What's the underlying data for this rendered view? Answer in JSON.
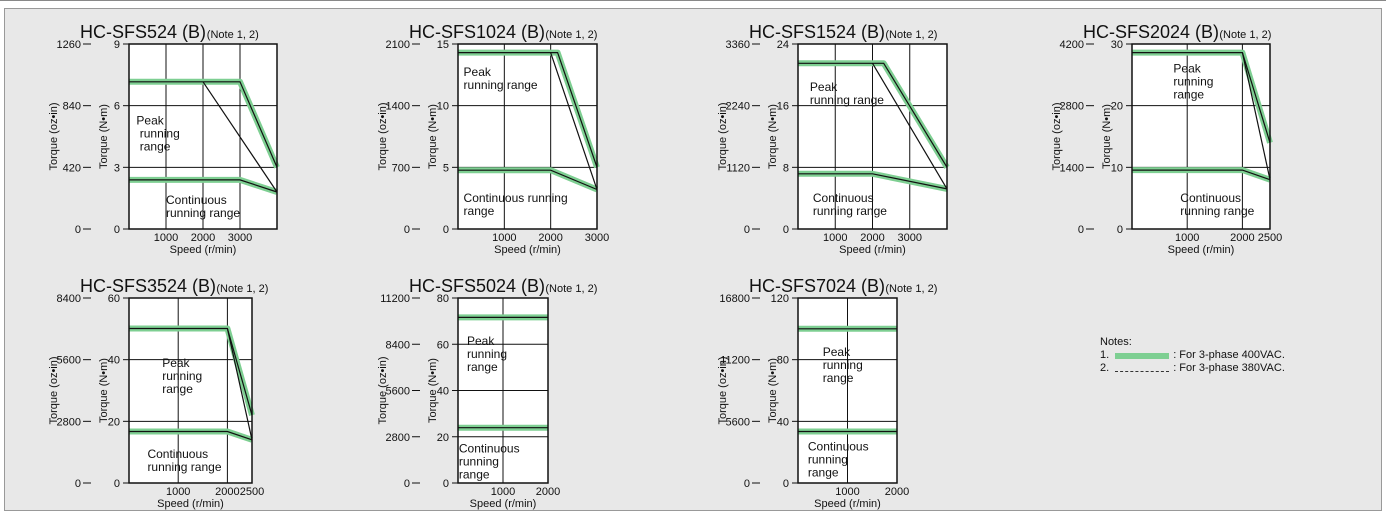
{
  "chart_data": [
    {
      "type": "line",
      "title": "HC-SFS524 (B)",
      "note": "(Note 1, 2)",
      "ylabel_left": "Torque (oz•in)",
      "ylabel_right": "Torque (N•m)",
      "xlabel": "Speed (r/min)",
      "xlim": [
        0,
        4000
      ],
      "ylim": [
        0,
        9
      ],
      "x_ticks": [
        1000,
        2000,
        3000
      ],
      "x_tick_labels": [
        "1000",
        "2000",
        "3000"
      ],
      "y_ticks": [
        0,
        3,
        6,
        9
      ],
      "y_tick_labels": [
        "0",
        "3",
        "6",
        "9"
      ],
      "oz_ticks": [
        "0",
        "420",
        "840",
        "1260"
      ],
      "region_labels": {
        "peak": "Peak running range",
        "continuous": "Continuous running range"
      },
      "series": [
        {
          "name": "Peak running range",
          "x": [
            0,
            2000,
            3000,
            4000
          ],
          "y": [
            7.16,
            7.16,
            7.16,
            3.0
          ]
        },
        {
          "name": "Continuous running range",
          "x": [
            0,
            2000,
            3000,
            4000
          ],
          "y": [
            2.39,
            2.39,
            2.39,
            1.8
          ]
        }
      ]
    },
    {
      "type": "line",
      "title": "HC-SFS1024 (B)",
      "note": "(Note 1, 2)",
      "ylabel_left": "Torque (oz•in)",
      "ylabel_right": "Torque (N•m)",
      "xlabel": "Speed (r/min)",
      "xlim": [
        0,
        3000
      ],
      "ylim": [
        0,
        15
      ],
      "x_ticks": [
        1000,
        2000,
        3000
      ],
      "x_tick_labels": [
        "1000",
        "2000",
        "3000"
      ],
      "y_ticks": [
        0,
        5,
        10,
        15
      ],
      "y_tick_labels": [
        "0",
        "5",
        "10",
        "15"
      ],
      "oz_ticks": [
        "0",
        "700",
        "1400",
        "2100"
      ],
      "region_labels": {
        "peak": "Peak running range",
        "continuous": "Continuous running range"
      },
      "series": [
        {
          "name": "Peak running range",
          "x": [
            0,
            2000,
            2150,
            3000
          ],
          "y": [
            14.3,
            14.3,
            14.3,
            5.0
          ]
        },
        {
          "name": "Continuous running range",
          "x": [
            0,
            2000,
            3000
          ],
          "y": [
            4.77,
            4.77,
            3.2
          ]
        }
      ]
    },
    {
      "type": "line",
      "title": "HC-SFS1524 (B)",
      "note": "(Note 1, 2)",
      "ylabel_left": "Torque (oz•in)",
      "ylabel_right": "Torque (N•m)",
      "xlabel": "Speed (r/min)",
      "xlim": [
        0,
        4000
      ],
      "ylim": [
        0,
        24
      ],
      "x_ticks": [
        1000,
        2000,
        3000
      ],
      "x_tick_labels": [
        "1000",
        "2000",
        "3000"
      ],
      "y_ticks": [
        0,
        8,
        16,
        24
      ],
      "y_tick_labels": [
        "0",
        "8",
        "16",
        "24"
      ],
      "oz_ticks": [
        "0",
        "1120",
        "2240",
        "3360"
      ],
      "region_labels": {
        "peak": "Peak running range",
        "continuous": "Continuous running range"
      },
      "series": [
        {
          "name": "Peak running range",
          "x": [
            0,
            2000,
            2300,
            4000
          ],
          "y": [
            21.5,
            21.5,
            21.5,
            8.0
          ]
        },
        {
          "name": "Continuous running range",
          "x": [
            0,
            2000,
            4000
          ],
          "y": [
            7.16,
            7.16,
            5.2
          ]
        }
      ]
    },
    {
      "type": "line",
      "title": "HC-SFS2024 (B)",
      "note": "(Note 1, 2)",
      "ylabel_left": "Torque (oz•in)",
      "ylabel_right": "Torque (N•m)",
      "xlabel": "Speed (r/min)",
      "xlim": [
        0,
        2500
      ],
      "ylim": [
        0,
        30
      ],
      "x_ticks": [
        1000,
        2000,
        2500
      ],
      "x_tick_labels": [
        "1000",
        "2000",
        "2500"
      ],
      "y_ticks": [
        0,
        10,
        20,
        30
      ],
      "y_tick_labels": [
        "0",
        "10",
        "20",
        "30"
      ],
      "oz_ticks": [
        "0",
        "1400",
        "2800",
        "4200"
      ],
      "region_labels": {
        "peak": "Peak running range",
        "continuous": "Continuous running range"
      },
      "series": [
        {
          "name": "Peak running range",
          "x": [
            0,
            2000,
            2500
          ],
          "y": [
            28.6,
            28.6,
            14.0
          ]
        },
        {
          "name": "Continuous running range",
          "x": [
            0,
            2000,
            2500
          ],
          "y": [
            9.55,
            9.55,
            8.0
          ]
        }
      ]
    },
    {
      "type": "line",
      "title": "HC-SFS3524 (B)",
      "note": "(Note 1, 2)",
      "ylabel_left": "Torque (oz•in)",
      "ylabel_right": "Torque (N•m)",
      "xlabel": "Speed (r/min)",
      "xlim": [
        0,
        2500
      ],
      "ylim": [
        0,
        60
      ],
      "x_ticks": [
        1000,
        2000,
        2500
      ],
      "x_tick_labels": [
        "1000",
        "2000",
        "2500"
      ],
      "y_ticks": [
        0,
        20,
        40,
        60
      ],
      "y_tick_labels": [
        "0",
        "20",
        "40",
        "60"
      ],
      "oz_ticks": [
        "0",
        "2800",
        "5600",
        "8400"
      ],
      "region_labels": {
        "peak": "Peak running range",
        "continuous": "Continuous running range"
      },
      "series": [
        {
          "name": "Peak running range",
          "x": [
            0,
            2000,
            2500
          ],
          "y": [
            50.1,
            50.1,
            22.0
          ]
        },
        {
          "name": "Continuous running range",
          "x": [
            0,
            2000,
            2500
          ],
          "y": [
            16.7,
            16.7,
            14.0
          ]
        }
      ]
    },
    {
      "type": "line",
      "title": "HC-SFS5024 (B)",
      "note": "(Note 1, 2)",
      "ylabel_left": "Torque (oz•in)",
      "ylabel_right": "Torque (N•m)",
      "xlabel": "Speed (r/min)",
      "xlim": [
        0,
        2000
      ],
      "ylim": [
        0,
        80
      ],
      "x_ticks": [
        1000,
        2000
      ],
      "x_tick_labels": [
        "1000",
        "2000"
      ],
      "y_ticks": [
        0,
        20,
        40,
        60,
        80
      ],
      "y_tick_labels": [
        "0",
        "20",
        "40",
        "60",
        "80"
      ],
      "oz_ticks": [
        "0",
        "2800",
        "5600",
        "8400",
        "11200"
      ],
      "region_labels": {
        "peak": "Peak running range",
        "continuous": "Continuous running range"
      },
      "series": [
        {
          "name": "Peak running range",
          "x": [
            0,
            2000
          ],
          "y": [
            71.6,
            71.6
          ]
        },
        {
          "name": "Continuous running range",
          "x": [
            0,
            2000
          ],
          "y": [
            23.9,
            23.9
          ]
        }
      ]
    },
    {
      "type": "line",
      "title": "HC-SFS7024 (B)",
      "note": "(Note 1, 2)",
      "ylabel_left": "Torque (oz•in)",
      "ylabel_right": "Torque (N•m)",
      "xlabel": "Speed (r/min)",
      "xlim": [
        0,
        2000
      ],
      "ylim": [
        0,
        120
      ],
      "x_ticks": [
        1000,
        2000
      ],
      "x_tick_labels": [
        "1000",
        "2000"
      ],
      "y_ticks": [
        0,
        40,
        80,
        120
      ],
      "y_tick_labels": [
        "0",
        "40",
        "80",
        "120"
      ],
      "oz_ticks": [
        "0",
        "5600",
        "11200",
        "16800"
      ],
      "region_labels": {
        "peak": "Peak running range",
        "continuous": "Continuous running range"
      },
      "series": [
        {
          "name": "Peak running range",
          "x": [
            0,
            2000
          ],
          "y": [
            100,
            100
          ]
        },
        {
          "name": "Continuous running range",
          "x": [
            0,
            2000
          ],
          "y": [
            33.4,
            33.4
          ]
        }
      ]
    }
  ],
  "notes": {
    "heading": "Notes:",
    "item1_num": "1.",
    "item1_text": ": For 3-phase 400VAC.",
    "item2_num": "2.",
    "item2_text": ": For 3-phase 380VAC."
  },
  "colors": {
    "line_400vac": "#7ecf92",
    "line_380vac": "#111111",
    "background": "#e8e8e8",
    "plot_bg": "#ffffff"
  }
}
